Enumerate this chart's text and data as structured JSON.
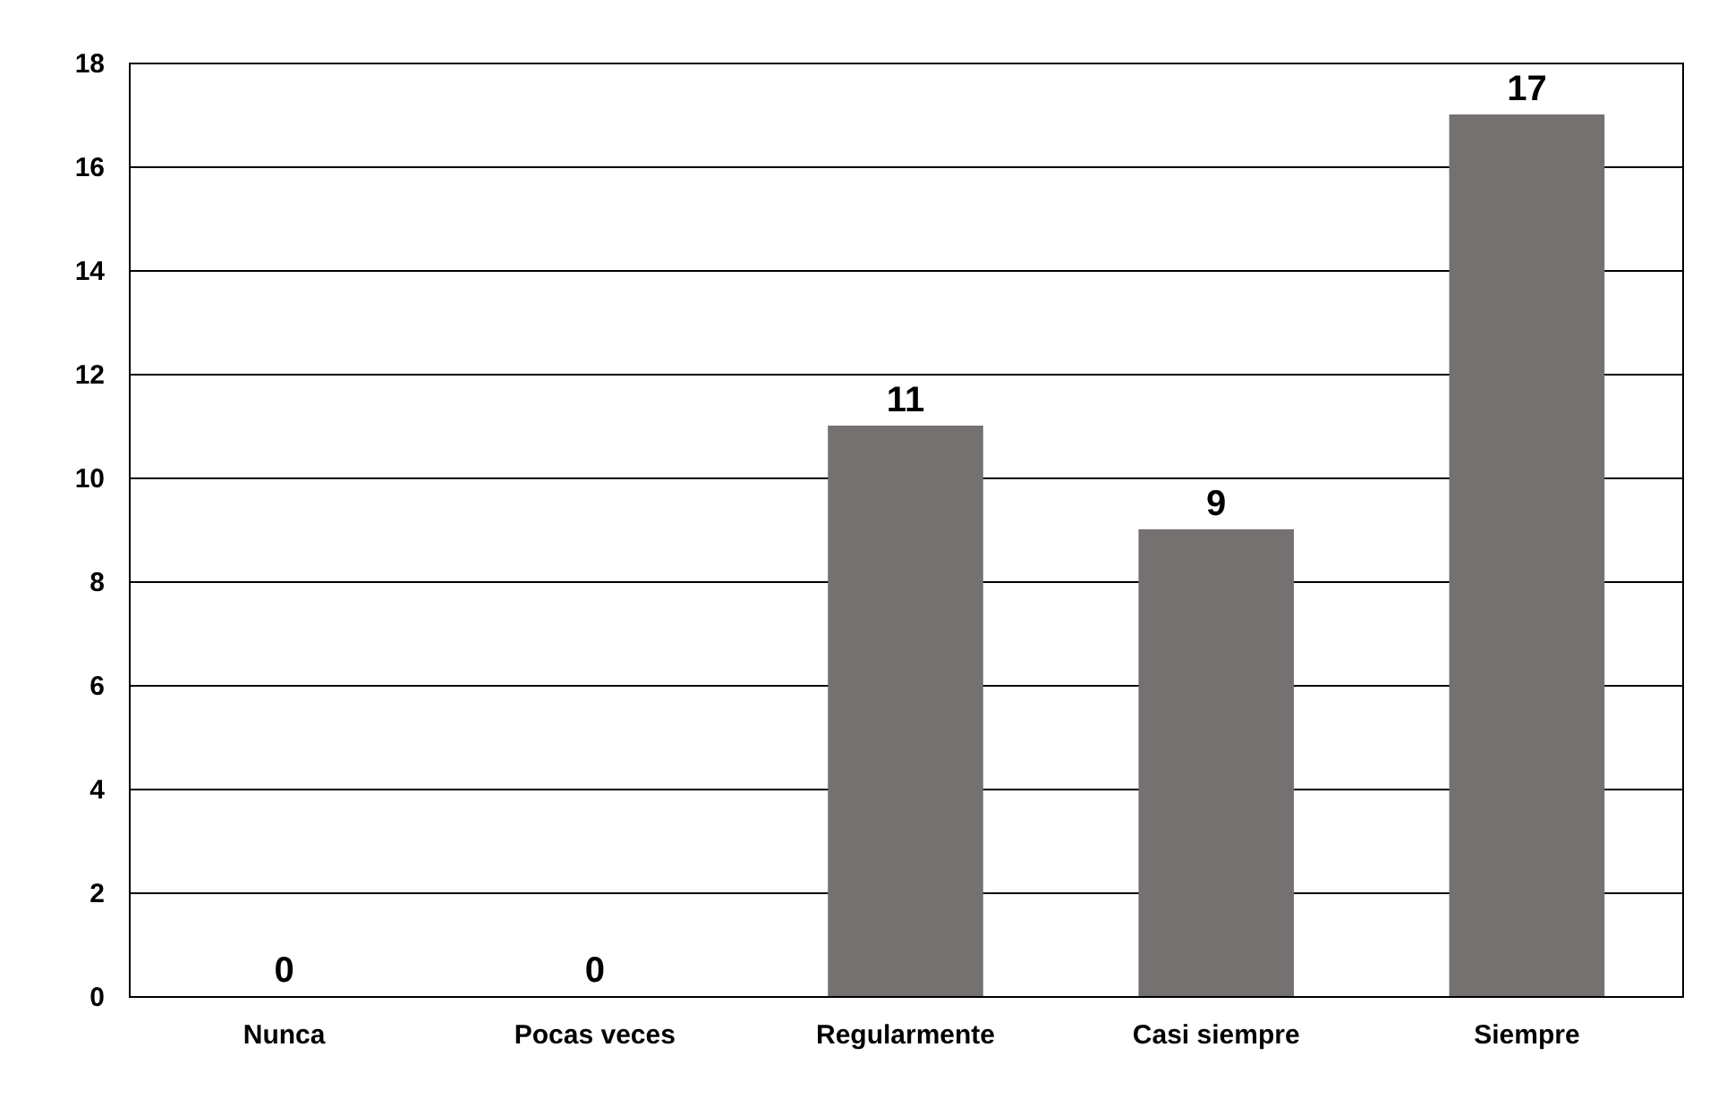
{
  "chart_data": {
    "type": "bar",
    "categories": [
      "Nunca",
      "Pocas veces",
      "Regularmente",
      "Casi siempre",
      "Siempre"
    ],
    "values": [
      0,
      0,
      11,
      9,
      17
    ],
    "color": "#767171",
    "ylim": [
      0,
      18
    ],
    "yticks": [
      0,
      2,
      4,
      6,
      8,
      10,
      12,
      14,
      16,
      18
    ],
    "grid": "y",
    "data_labels": true
  }
}
